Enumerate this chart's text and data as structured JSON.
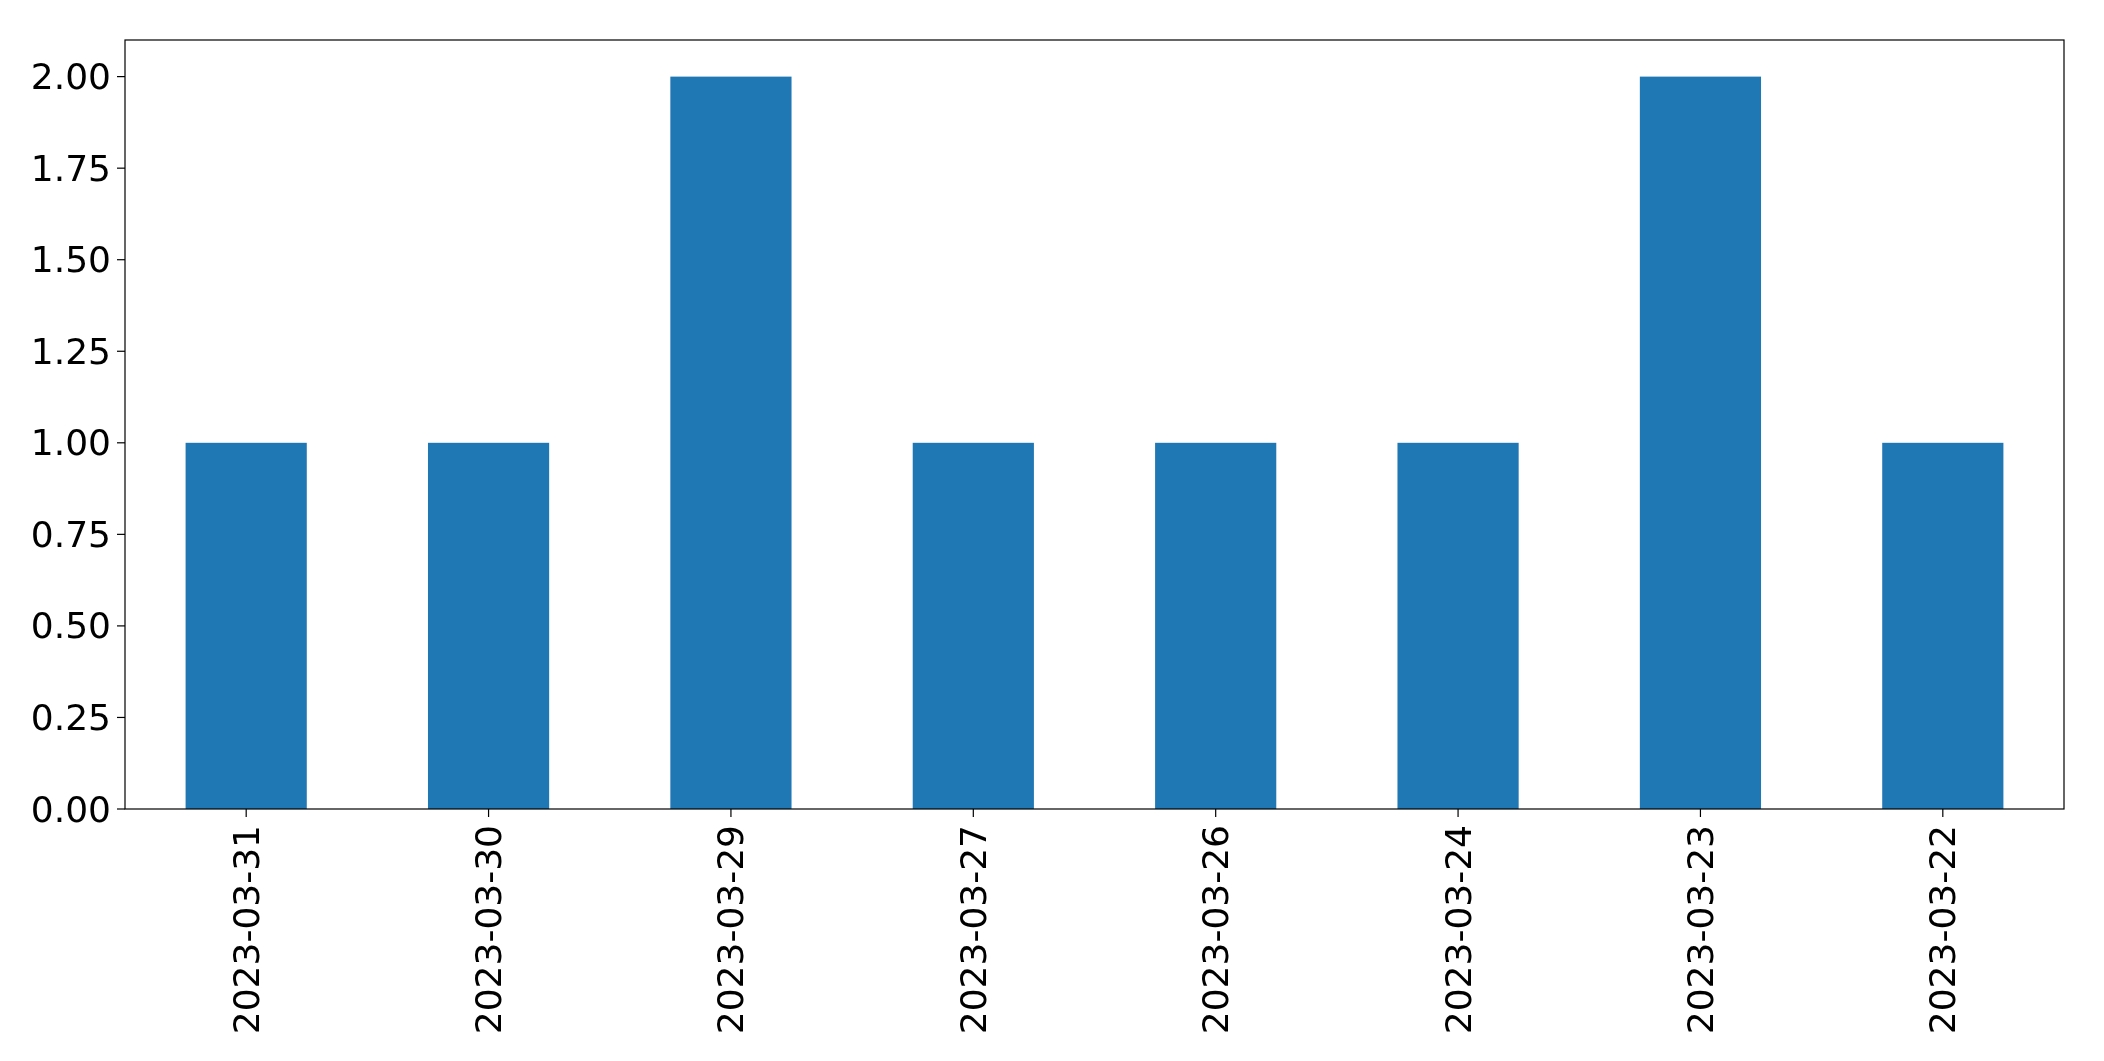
{
  "chart_data": {
    "type": "bar",
    "categories": [
      "2023-03-31",
      "2023-03-30",
      "2023-03-29",
      "2023-03-27",
      "2023-03-26",
      "2023-03-24",
      "2023-03-23",
      "2023-03-22"
    ],
    "values": [
      1,
      1,
      2,
      1,
      1,
      1,
      2,
      1
    ],
    "color": "#1f77b4",
    "ylim": [
      0,
      2.1
    ],
    "yticks": [
      {
        "value": 0,
        "label": "0.00"
      },
      {
        "value": 0.25,
        "label": "0.25"
      },
      {
        "value": 0.5,
        "label": "0.50"
      },
      {
        "value": 0.75,
        "label": "0.75"
      },
      {
        "value": 1,
        "label": "1.00"
      },
      {
        "value": 1.25,
        "label": "1.25"
      },
      {
        "value": 1.5,
        "label": "1.50"
      },
      {
        "value": 1.75,
        "label": "1.75"
      },
      {
        "value": 2,
        "label": "2.00"
      }
    ],
    "grid": false
  }
}
